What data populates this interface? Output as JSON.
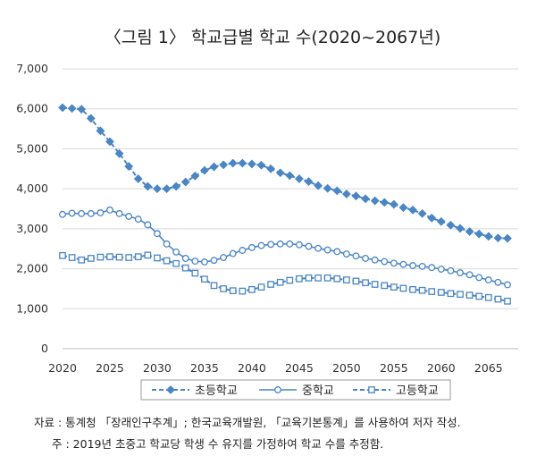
{
  "chart_data": {
    "type": "line",
    "title": "〈그림 1〉 학교급별 학교 수(2020~2067년)",
    "xlabel": "",
    "ylabel": "",
    "x": [
      2020,
      2021,
      2022,
      2023,
      2024,
      2025,
      2026,
      2027,
      2028,
      2029,
      2030,
      2031,
      2032,
      2033,
      2034,
      2035,
      2036,
      2037,
      2038,
      2039,
      2040,
      2041,
      2042,
      2043,
      2044,
      2045,
      2046,
      2047,
      2048,
      2049,
      2050,
      2051,
      2052,
      2053,
      2054,
      2055,
      2056,
      2057,
      2058,
      2059,
      2060,
      2061,
      2062,
      2063,
      2064,
      2065,
      2066,
      2067
    ],
    "x_ticks": [
      2020,
      2025,
      2030,
      2035,
      2040,
      2045,
      2050,
      2055,
      2060,
      2065
    ],
    "x_tick_labels": [
      "2020",
      "2025",
      "2030",
      "2035",
      "2040",
      "2045",
      "2050",
      "2055",
      "2060",
      "2065"
    ],
    "ylim": [
      0,
      7000
    ],
    "y_ticks": [
      0,
      1000,
      2000,
      3000,
      4000,
      5000,
      6000,
      7000
    ],
    "y_tick_labels": [
      "0",
      "1,000",
      "2,000",
      "3,000",
      "4,000",
      "5,000",
      "6,000",
      "7,000"
    ],
    "grid": true,
    "legend_position": "bottom",
    "series": [
      {
        "name": "초등학교",
        "color": "#4a86c5",
        "style": "dashed",
        "marker": "diamond",
        "values": [
          6030,
          6010,
          5990,
          5760,
          5450,
          5180,
          4880,
          4560,
          4250,
          4060,
          4000,
          4000,
          4060,
          4170,
          4320,
          4460,
          4550,
          4600,
          4640,
          4640,
          4620,
          4590,
          4500,
          4400,
          4330,
          4250,
          4180,
          4080,
          4010,
          3950,
          3870,
          3820,
          3750,
          3700,
          3660,
          3610,
          3530,
          3470,
          3380,
          3270,
          3180,
          3090,
          3010,
          2930,
          2870,
          2810,
          2770,
          2760
        ]
      },
      {
        "name": "중학교",
        "color": "#4a86c5",
        "style": "solid",
        "marker": "circle",
        "values": [
          3360,
          3390,
          3380,
          3380,
          3400,
          3470,
          3380,
          3310,
          3240,
          3100,
          2880,
          2620,
          2420,
          2260,
          2190,
          2170,
          2210,
          2280,
          2380,
          2460,
          2530,
          2580,
          2610,
          2620,
          2620,
          2600,
          2560,
          2510,
          2470,
          2430,
          2370,
          2320,
          2260,
          2220,
          2180,
          2140,
          2110,
          2080,
          2060,
          2030,
          1990,
          1950,
          1900,
          1850,
          1780,
          1720,
          1660,
          1600
        ]
      },
      {
        "name": "고등학교",
        "color": "#4a86c5",
        "style": "dashed",
        "marker": "square",
        "values": [
          2330,
          2280,
          2220,
          2260,
          2290,
          2300,
          2290,
          2280,
          2300,
          2340,
          2270,
          2200,
          2130,
          2020,
          1890,
          1740,
          1580,
          1500,
          1450,
          1440,
          1480,
          1540,
          1610,
          1660,
          1710,
          1750,
          1770,
          1770,
          1770,
          1750,
          1720,
          1690,
          1650,
          1610,
          1580,
          1540,
          1510,
          1480,
          1460,
          1430,
          1410,
          1380,
          1360,
          1340,
          1310,
          1280,
          1240,
          1190
        ]
      }
    ]
  },
  "notes": {
    "source": "자료 : 통계청 「장래인구추계」; 한국교육개발원, 「교육기본통계」를 사용하여 저자 작성.",
    "remark": "주 : 2019년 초중고 학교당 학생 수 유지를 가정하여 학교 수를 추정함."
  }
}
